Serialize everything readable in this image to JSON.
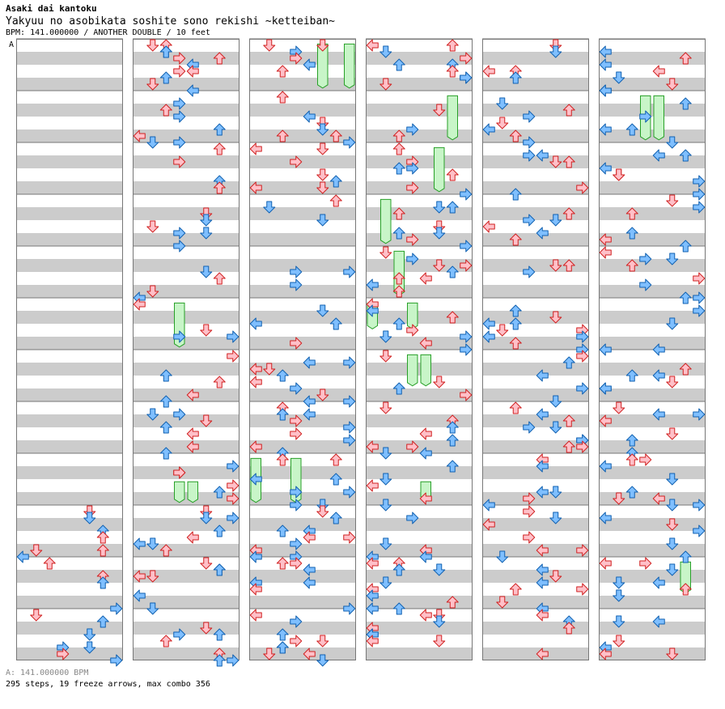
{
  "header": {
    "artist": "Asaki dai kantoku",
    "song_title": "Yakyuu no asobikata soshite sono rekishi ~ketteiban~",
    "meta_line": "BPM: 141.000000 / ANOTHER DOUBLE / 10 feet",
    "section_marker": "A"
  },
  "footer": {
    "bpm_legend": "A: 141.000000 BPM",
    "stats": "295 steps, 19 freeze arrows, max combo 356"
  },
  "colors": {
    "band_gray": "#cccccc",
    "border": "#777777",
    "arrow_red_fill": "#ffc0c8",
    "arrow_red_stroke": "#d02020",
    "arrow_blue_fill": "#7fbfff",
    "arrow_blue_stroke": "#1060b0",
    "freeze_fill": "#c8f5c8",
    "freeze_stroke": "#28a028"
  },
  "chart_data": {
    "columns": 6,
    "measures_per_column": 12,
    "lanes": [
      "p1-left",
      "p1-down",
      "p1-up",
      "p1-right",
      "p2-left",
      "p2-down",
      "p2-up",
      "p2-right"
    ],
    "arrow_types": [
      "red-quarter",
      "blue-eighth"
    ],
    "freezes": [
      {
        "column": 2,
        "measure": 0,
        "lane": 5,
        "start": 0.1,
        "end": 0.95
      },
      {
        "column": 2,
        "measure": 0,
        "lane": 7,
        "start": 0.1,
        "end": 0.95
      },
      {
        "column": 1,
        "measure": 5,
        "lane": 3,
        "start": 0.1,
        "end": 0.95
      },
      {
        "column": 1,
        "measure": 8,
        "lane": 3,
        "start": 0.55,
        "end": 0.95
      },
      {
        "column": 1,
        "measure": 8,
        "lane": 4,
        "start": 0.55,
        "end": 0.95
      },
      {
        "column": 2,
        "measure": 8,
        "lane": 0,
        "start": 0.1,
        "end": 0.95
      },
      {
        "column": 2,
        "measure": 8,
        "lane": 3,
        "start": 0.1,
        "end": 0.95
      },
      {
        "column": 3,
        "measure": 1,
        "lane": 6,
        "start": 0.1,
        "end": 0.95
      },
      {
        "column": 3,
        "measure": 2,
        "lane": 5,
        "start": 0.1,
        "end": 0.95
      },
      {
        "column": 3,
        "measure": 3,
        "lane": 1,
        "start": 0.1,
        "end": 0.95
      },
      {
        "column": 3,
        "measure": 4,
        "lane": 2,
        "start": 0.1,
        "end": 0.95
      },
      {
        "column": 3,
        "measure": 5,
        "lane": 0,
        "start": 0.1,
        "end": 0.6
      },
      {
        "column": 3,
        "measure": 5,
        "lane": 3,
        "start": 0.1,
        "end": 0.6
      },
      {
        "column": 3,
        "measure": 6,
        "lane": 3,
        "start": 0.1,
        "end": 0.7
      },
      {
        "column": 3,
        "measure": 6,
        "lane": 4,
        "start": 0.1,
        "end": 0.7
      },
      {
        "column": 3,
        "measure": 8,
        "lane": 4,
        "start": 0.55,
        "end": 0.9
      },
      {
        "column": 5,
        "measure": 1,
        "lane": 3,
        "start": 0.1,
        "end": 0.95
      },
      {
        "column": 5,
        "measure": 1,
        "lane": 4,
        "start": 0.1,
        "end": 0.95
      },
      {
        "column": 5,
        "measure": 10,
        "lane": 6,
        "start": 0.1,
        "end": 0.7
      }
    ]
  }
}
